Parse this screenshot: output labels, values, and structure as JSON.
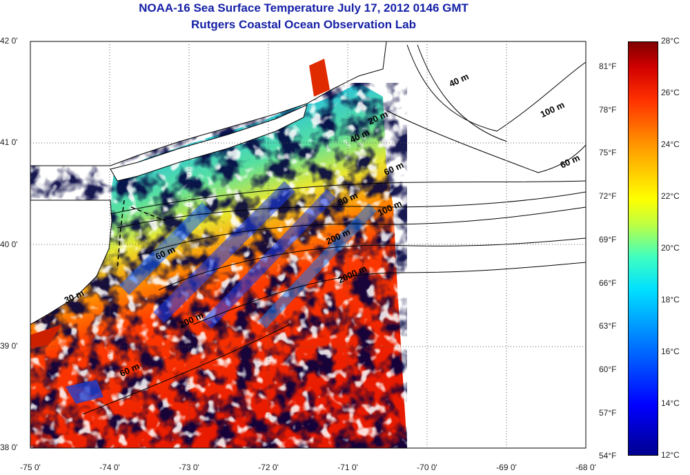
{
  "title": {
    "line1": "NOAA-16 Sea Surface Temperature July 17, 2012 0146 GMT",
    "line2": "Rutgers Coastal Ocean Observation Lab"
  },
  "axes": {
    "lon_labels": [
      "-75 0'",
      "-74 0'",
      "-73 0'",
      "-72 0'",
      "-71 0'",
      "-70 0'",
      "-69 0'",
      "-68 0'"
    ],
    "lat_labels": [
      "42 0'",
      "41 0'",
      "40 0'",
      "39 0'",
      "38 0'"
    ],
    "lon_range": [
      -75,
      -68
    ],
    "lat_range": [
      38,
      42
    ],
    "grid": "dotted"
  },
  "contours": [
    {
      "label": "20 m",
      "lon": -70.72,
      "lat": 41.18
    },
    {
      "label": "40 m",
      "lon": -70.95,
      "lat": 41.0
    },
    {
      "label": "60 m",
      "lon": -70.52,
      "lat": 40.68
    },
    {
      "label": "80 m",
      "lon": -71.1,
      "lat": 40.38
    },
    {
      "label": "100 m",
      "lon": -70.6,
      "lat": 40.28
    },
    {
      "label": "200 m",
      "lon": -71.25,
      "lat": 40.0
    },
    {
      "label": "2000 m",
      "lon": -71.1,
      "lat": 39.62
    },
    {
      "label": "40 m",
      "lon": -69.7,
      "lat": 41.55
    },
    {
      "label": "100 m",
      "lon": -68.55,
      "lat": 41.25
    },
    {
      "label": "60 m",
      "lon": -68.3,
      "lat": 40.75
    },
    {
      "label": "60 m",
      "lon": -73.4,
      "lat": 39.85
    },
    {
      "label": "30 m",
      "lon": -74.55,
      "lat": 39.42
    },
    {
      "label": "200 m",
      "lon": -73.1,
      "lat": 39.18
    },
    {
      "label": "60 m",
      "lon": -73.85,
      "lat": 38.7
    }
  ],
  "colorbar": {
    "celsius_labels": [
      "28°C",
      "26°C",
      "24°C",
      "22°C",
      "20°C",
      "18°C",
      "16°C",
      "14°C",
      "12°C"
    ],
    "fahrenheit_labels": [
      "81°F",
      "78°F",
      "75°F",
      "72°F",
      "69°F",
      "66°F",
      "63°F",
      "60°F",
      "57°F",
      "54°F"
    ],
    "range_c": [
      12,
      28
    ],
    "colors": [
      "#00008f",
      "#0000ff",
      "#00e0ff",
      "#ffff00",
      "#ffa000",
      "#ff3000",
      "#800000"
    ]
  }
}
